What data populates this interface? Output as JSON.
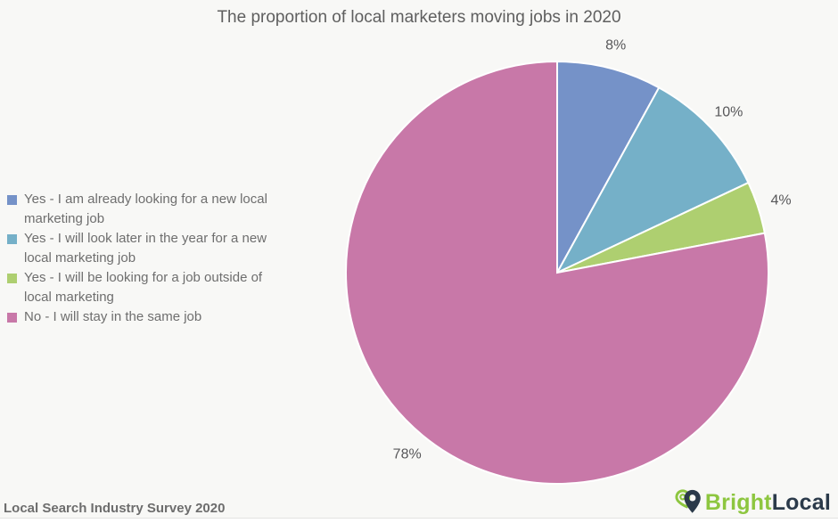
{
  "chart_data": {
    "type": "pie",
    "title": "The proportion of local marketers moving jobs in 2020",
    "legend_position": "left",
    "start_angle": "top",
    "direction": "clockwise",
    "slice_border_color": "#ffffff",
    "slices": [
      {
        "label": "Yes - I am already looking for a new local marketing job",
        "value": 8,
        "pct_label": "8%",
        "color": "#7592c8"
      },
      {
        "label": "Yes - I will look later in the year for a new local marketing job",
        "value": 10,
        "pct_label": "10%",
        "color": "#75b0c8"
      },
      {
        "label": "Yes - I will be looking for a job outside of local marketing",
        "value": 4,
        "pct_label": "4%",
        "color": "#aecf70"
      },
      {
        "label": "No - I will stay in the same job",
        "value": 78,
        "pct_label": "78%",
        "color": "#c878a8"
      }
    ]
  },
  "footer": {
    "source_label": "Local Search Industry Survey 2020",
    "logo": {
      "icon": "map-pin-logo",
      "brand_first": "Bright",
      "brand_second": "Local",
      "green": "#8dc63f",
      "navy": "#2b3a4a"
    }
  },
  "colors": {
    "background": "#f8f8f6",
    "title_text": "#5f5f5f",
    "legend_text": "#6e6e6e",
    "pct_label_text": "#58585a",
    "source_text": "#6d6d6d",
    "divider": "#e3e3e1"
  }
}
